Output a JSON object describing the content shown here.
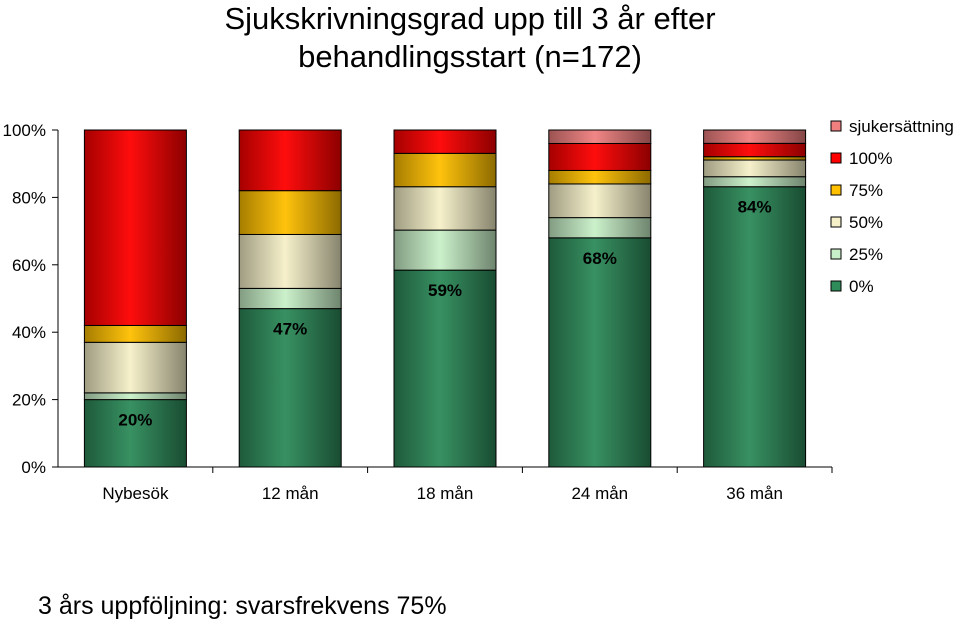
{
  "title_line1": "Sjukskrivningsgrad upp till 3 år efter",
  "title_line2": "behandlingsstart (n=172)",
  "footer": "3 års uppföljning: svarsfrekvens 75%",
  "chart_data": {
    "type": "bar",
    "stacked": true,
    "percent_stacked": true,
    "categories": [
      "Nybesök",
      "12 mån",
      "18 mån",
      "24 mån",
      "36 mån"
    ],
    "yticks": [
      "0%",
      "20%",
      "40%",
      "60%",
      "80%",
      "100%"
    ],
    "ylim": [
      0,
      100
    ],
    "legend_title": "sjukersättning",
    "legend_position": "right",
    "series": [
      {
        "name": "0%",
        "color": "#2e8b5a",
        "values": [
          20,
          47,
          59,
          68,
          84
        ]
      },
      {
        "name": "25%",
        "color": "#c8f0c8",
        "values": [
          2,
          6,
          12,
          6,
          3
        ]
      },
      {
        "name": "50%",
        "color": "#f5f0c8",
        "values": [
          15,
          16,
          13,
          10,
          5
        ]
      },
      {
        "name": "75%",
        "color": "#ffc000",
        "values": [
          5,
          13,
          10,
          4,
          1
        ]
      },
      {
        "name": "100%",
        "color": "#ff0000",
        "values": [
          58,
          18,
          7,
          8,
          4
        ]
      },
      {
        "name": "sjukersättning",
        "color": "#f08080",
        "values": [
          0,
          0,
          0,
          4,
          4
        ]
      }
    ],
    "labels": [
      "20%",
      "47%",
      "59%",
      "68%",
      "84%"
    ]
  }
}
